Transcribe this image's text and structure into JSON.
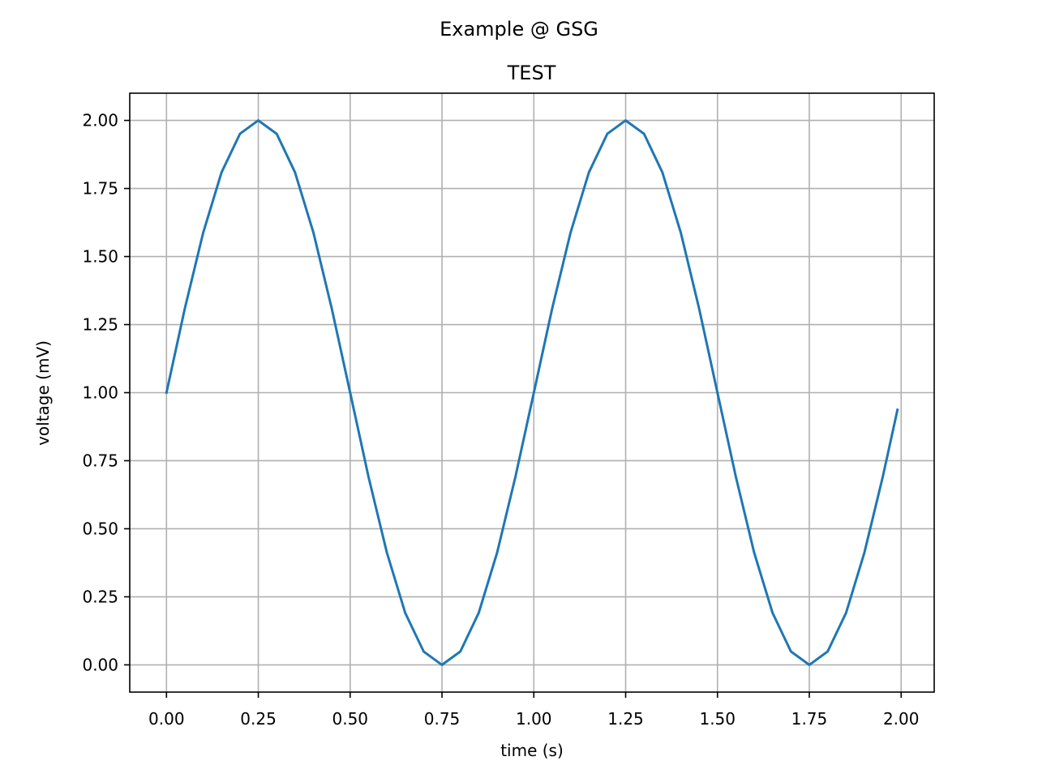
{
  "figure": {
    "suptitle": "Example @ GSG"
  },
  "chart_data": {
    "type": "line",
    "title": "TEST",
    "xlabel": "time (s)",
    "ylabel": "voltage (mV)",
    "xlim": [
      -0.1,
      2.09
    ],
    "ylim": [
      -0.1,
      2.1
    ],
    "xticks": [
      0.0,
      0.25,
      0.5,
      0.75,
      1.0,
      1.25,
      1.5,
      1.75,
      2.0
    ],
    "xtick_labels": [
      "0.00",
      "0.25",
      "0.50",
      "0.75",
      "1.00",
      "1.25",
      "1.50",
      "1.75",
      "2.00"
    ],
    "yticks": [
      0.0,
      0.25,
      0.5,
      0.75,
      1.0,
      1.25,
      1.5,
      1.75,
      2.0
    ],
    "ytick_labels": [
      "0.00",
      "0.25",
      "0.50",
      "0.75",
      "1.00",
      "1.25",
      "1.50",
      "1.75",
      "2.00"
    ],
    "grid": true,
    "colors": {
      "line": "#1f77b4",
      "grid": "#b0b0b0",
      "axes": "#000000"
    },
    "series": [
      {
        "x": [
          0.0,
          0.05,
          0.1,
          0.15,
          0.2,
          0.25,
          0.3,
          0.35,
          0.4,
          0.45,
          0.5,
          0.55,
          0.6,
          0.65,
          0.7,
          0.75,
          0.8,
          0.85,
          0.9,
          0.95,
          1.0,
          1.05,
          1.1,
          1.15,
          1.2,
          1.25,
          1.3,
          1.35,
          1.4,
          1.45,
          1.5,
          1.55,
          1.6,
          1.65,
          1.7,
          1.75,
          1.8,
          1.85,
          1.9,
          1.95,
          1.99
        ],
        "y": [
          1.0,
          1.309,
          1.588,
          1.809,
          1.951,
          2.0,
          1.951,
          1.809,
          1.588,
          1.309,
          1.0,
          0.691,
          0.412,
          0.191,
          0.049,
          0.0,
          0.049,
          0.191,
          0.412,
          0.691,
          1.0,
          1.309,
          1.588,
          1.809,
          1.951,
          2.0,
          1.951,
          1.809,
          1.588,
          1.309,
          1.0,
          0.691,
          0.412,
          0.191,
          0.049,
          0.0,
          0.049,
          0.191,
          0.412,
          0.691,
          0.937
        ]
      }
    ]
  }
}
